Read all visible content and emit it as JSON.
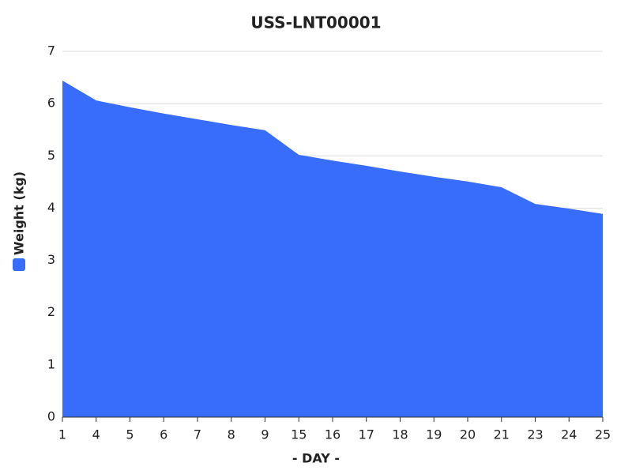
{
  "chart_data": {
    "type": "area",
    "title": "USS-LNT00001",
    "x_label": "-  DAY -",
    "categories": [
      "1",
      "4",
      "5",
      "6",
      "7",
      "8",
      "9",
      "15",
      "16",
      "17",
      "18",
      "19",
      "20",
      "21",
      "23",
      "24",
      "25"
    ],
    "series": [
      {
        "name": "Weight (kg)",
        "color": "#386cfa",
        "values": [
          6.44,
          6.06,
          5.93,
          5.81,
          5.7,
          5.59,
          5.49,
          5.02,
          4.91,
          4.81,
          4.7,
          4.6,
          4.51,
          4.4,
          4.08,
          3.99,
          3.89
        ]
      }
    ],
    "ylim": [
      0,
      7
    ],
    "yticks": [
      0,
      1,
      2,
      3,
      4,
      5,
      6,
      7
    ],
    "grid": true,
    "legend": "left"
  }
}
